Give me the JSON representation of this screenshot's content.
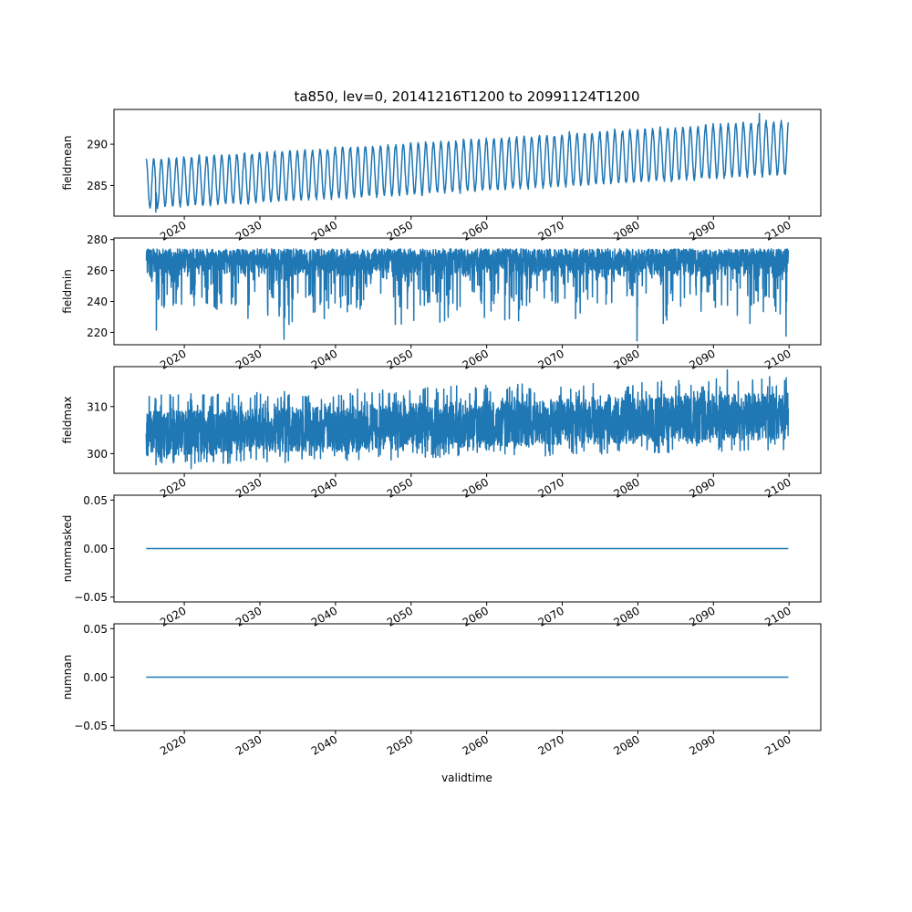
{
  "figure": {
    "title": "ta850, lev=0, 20141216T1200 to 20991124T1200",
    "xlabel": "validtime"
  },
  "style": {
    "series_color": "#1f77b4",
    "axis_color": "#000000",
    "background": "#ffffff"
  },
  "chart_data": [
    {
      "type": "line",
      "name": "fieldmean-panel",
      "ylabel": "fieldmean",
      "x_range": [
        2014.96,
        2099.9
      ],
      "xlim": [
        2010.7,
        2104.2
      ],
      "ylim": [
        281.3,
        294.2
      ],
      "yticks": [
        285,
        290
      ],
      "xticks": [
        2020,
        2030,
        2040,
        2050,
        2060,
        2070,
        2080,
        2090,
        2100
      ],
      "pattern": {
        "kind": "seasonal",
        "cycles_per_year": 1,
        "start_center": 285.2,
        "end_center": 289.6,
        "start_amplitude": 2.9,
        "end_amplitude": 3.2,
        "start_min": 281.8,
        "end_max": 293.7
      },
      "grid": false
    },
    {
      "type": "line",
      "name": "fieldmin-panel",
      "ylabel": "fieldmin",
      "x_range": [
        2014.96,
        2099.9
      ],
      "xlim": [
        2010.7,
        2104.2
      ],
      "ylim": [
        212,
        281
      ],
      "yticks": [
        220,
        240,
        260,
        280
      ],
      "xticks": [
        2020,
        2030,
        2040,
        2050,
        2060,
        2070,
        2080,
        2090,
        2100
      ],
      "pattern": {
        "kind": "noisy-band",
        "band_top": 274,
        "band_bottom": 255,
        "spike_minimums": [
          {
            "x": 2016.3,
            "y": 221.5
          },
          {
            "x": 2033.2,
            "y": 215.5
          },
          {
            "x": 2079.9,
            "y": 214.5
          },
          {
            "x": 2099.6,
            "y": 217.5
          }
        ]
      },
      "grid": false
    },
    {
      "type": "line",
      "name": "fieldmax-panel",
      "ylabel": "fieldmax",
      "x_range": [
        2014.96,
        2099.9
      ],
      "xlim": [
        2010.7,
        2104.2
      ],
      "ylim": [
        295.8,
        318.5
      ],
      "yticks": [
        300,
        310
      ],
      "xticks": [
        2020,
        2030,
        2040,
        2050,
        2060,
        2070,
        2080,
        2090,
        2100
      ],
      "pattern": {
        "kind": "noisy-band",
        "start_band": [
          299.5,
          309
        ],
        "end_band": [
          303,
          313
        ],
        "start_min": 296.8,
        "end_max": 317.8
      },
      "grid": false
    },
    {
      "type": "line",
      "name": "nummasked-panel",
      "ylabel": "nummasked",
      "x_range": [
        2014.96,
        2099.9
      ],
      "xlim": [
        2010.7,
        2104.2
      ],
      "ylim": [
        -0.055,
        0.055
      ],
      "yticks": [
        -0.05,
        0.0,
        0.05
      ],
      "ytick_labels": [
        "−0.05",
        "0.00",
        "0.05"
      ],
      "xticks": [
        2020,
        2030,
        2040,
        2050,
        2060,
        2070,
        2080,
        2090,
        2100
      ],
      "constant_value": 0.0,
      "grid": false
    },
    {
      "type": "line",
      "name": "numnan-panel",
      "ylabel": "numnan",
      "x_range": [
        2014.96,
        2099.9
      ],
      "xlim": [
        2010.7,
        2104.2
      ],
      "ylim": [
        -0.055,
        0.055
      ],
      "yticks": [
        -0.05,
        0.0,
        0.05
      ],
      "ytick_labels": [
        "−0.05",
        "0.00",
        "0.05"
      ],
      "xticks": [
        2020,
        2030,
        2040,
        2050,
        2060,
        2070,
        2080,
        2090,
        2100
      ],
      "xtick_labels": [
        "2020",
        "2030",
        "2040",
        "2050",
        "2060",
        "2070",
        "2080",
        "2090",
        "2100"
      ],
      "constant_value": 0.0,
      "grid": false
    }
  ]
}
